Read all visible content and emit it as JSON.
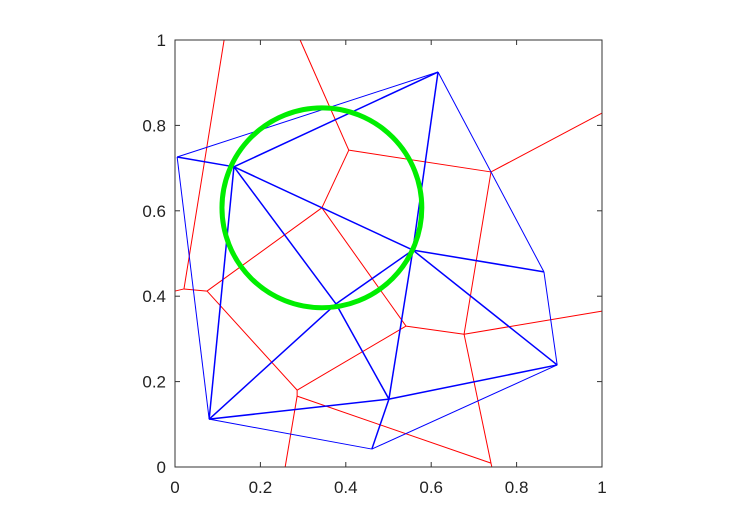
{
  "chart_data": {
    "type": "line",
    "xlim": [
      0,
      1
    ],
    "ylim": [
      0,
      1
    ],
    "x_ticks": [
      "0",
      "0.2",
      "0.4",
      "0.6",
      "0.8",
      "1"
    ],
    "y_ticks": [
      "0",
      "0.2",
      "0.4",
      "0.6",
      "0.8",
      "1"
    ],
    "grid": false,
    "colors": {
      "triangulation": "#0000ff",
      "voronoi": "#ff0000",
      "circle": "#00ee00"
    },
    "points": {
      "A": [
        0.005,
        0.726
      ],
      "B": [
        0.616,
        0.925
      ],
      "C": [
        0.138,
        0.703
      ],
      "D": [
        0.557,
        0.508
      ],
      "E": [
        0.864,
        0.457
      ],
      "F": [
        0.895,
        0.239
      ],
      "G": [
        0.461,
        0.042
      ],
      "H": [
        0.08,
        0.112
      ],
      "I": [
        0.501,
        0.159
      ],
      "P": [
        0.377,
        0.382
      ]
    },
    "triangulation_edges": [
      [
        "A",
        "B"
      ],
      [
        "A",
        "C"
      ],
      [
        "A",
        "H"
      ],
      [
        "C",
        "B"
      ],
      [
        "C",
        "D"
      ],
      [
        "C",
        "P"
      ],
      [
        "C",
        "H"
      ],
      [
        "B",
        "D"
      ],
      [
        "B",
        "E"
      ],
      [
        "D",
        "P"
      ],
      [
        "D",
        "E"
      ],
      [
        "D",
        "F"
      ],
      [
        "D",
        "I"
      ],
      [
        "P",
        "H"
      ],
      [
        "P",
        "I"
      ],
      [
        "H",
        "I"
      ],
      [
        "H",
        "G"
      ],
      [
        "I",
        "G"
      ],
      [
        "I",
        "F"
      ],
      [
        "G",
        "F"
      ],
      [
        "E",
        "F"
      ]
    ],
    "voronoi_segments": [
      [
        [
          0.115,
          1.0
        ],
        [
          0.021,
          0.417
        ]
      ],
      [
        [
          0.021,
          0.417
        ],
        [
          0.0,
          0.412
        ]
      ],
      [
        [
          0.021,
          0.417
        ],
        [
          0.075,
          0.412
        ]
      ],
      [
        [
          0.075,
          0.412
        ],
        [
          0.344,
          0.607
        ]
      ],
      [
        [
          0.075,
          0.412
        ],
        [
          0.286,
          0.18
        ]
      ],
      [
        [
          0.344,
          0.607
        ],
        [
          0.407,
          0.742
        ]
      ],
      [
        [
          0.344,
          0.607
        ],
        [
          0.541,
          0.33
        ]
      ],
      [
        [
          0.293,
          1.0
        ],
        [
          0.407,
          0.742
        ]
      ],
      [
        [
          0.407,
          0.742
        ],
        [
          0.74,
          0.691
        ]
      ],
      [
        [
          0.74,
          0.691
        ],
        [
          1.0,
          0.829
        ]
      ],
      [
        [
          0.74,
          0.691
        ],
        [
          0.677,
          0.311
        ]
      ],
      [
        [
          0.677,
          0.311
        ],
        [
          1.0,
          0.365
        ]
      ],
      [
        [
          0.677,
          0.311
        ],
        [
          0.541,
          0.33
        ]
      ],
      [
        [
          0.541,
          0.33
        ],
        [
          0.286,
          0.18
        ]
      ],
      [
        [
          0.286,
          0.18
        ],
        [
          0.286,
          0.166
        ]
      ],
      [
        [
          0.286,
          0.166
        ],
        [
          0.258,
          0.0
        ]
      ],
      [
        [
          0.286,
          0.166
        ],
        [
          0.74,
          0.009
        ]
      ],
      [
        [
          0.74,
          0.009
        ],
        [
          0.677,
          0.311
        ]
      ],
      [
        [
          0.74,
          0.009
        ],
        [
          0.742,
          0.0
        ]
      ]
    ],
    "circle": {
      "center": [
        0.344,
        0.607
      ],
      "radius": 0.234
    }
  }
}
